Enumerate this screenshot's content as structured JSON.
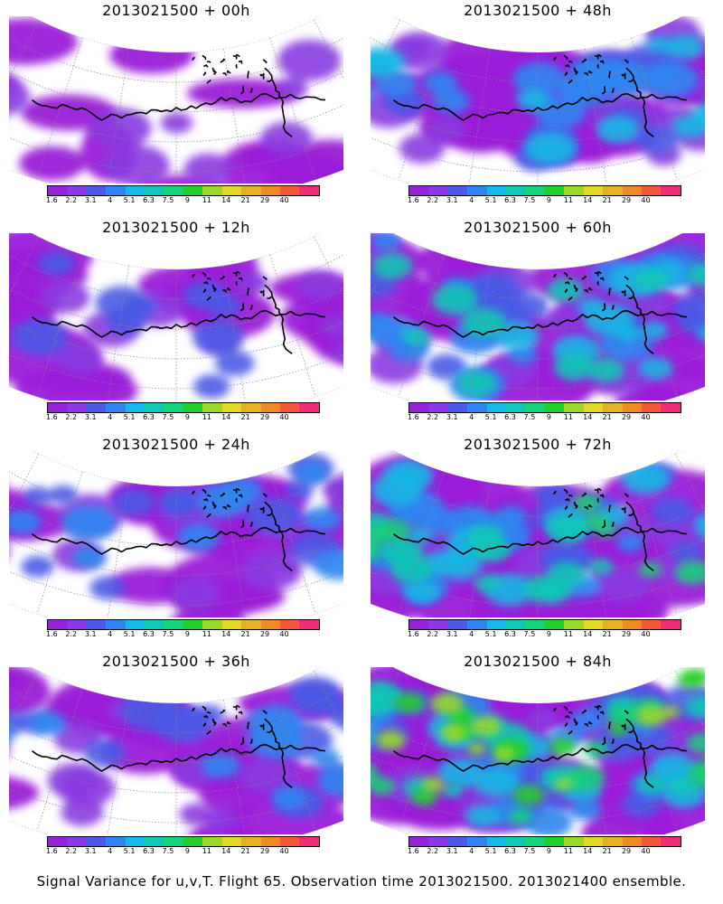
{
  "figure": {
    "caption": "Signal Variance for u,v,T. Flight 65. Observation time 2013021500. 2013021400 ensemble.",
    "colorbar": {
      "labels": [
        "1.6",
        "2.2",
        "3.1",
        "4",
        "5.1",
        "6.3",
        "7.5",
        "9",
        "11",
        "14",
        "21",
        "29",
        "40"
      ],
      "colors": [
        "#9b1fd8",
        "#8a3ae0",
        "#4a5be6",
        "#2f86f0",
        "#18b7e6",
        "#11c8b6",
        "#19d27a",
        "#23cf2a",
        "#9bd82a",
        "#e5d72a",
        "#e3b12a",
        "#ef8a2a",
        "#ee5a3a",
        "#ec2d7a"
      ]
    },
    "panels": [
      {
        "title": "2013021500 + 00h",
        "intensity": 0.15
      },
      {
        "title": "2013021500 + 48h",
        "intensity": 0.45
      },
      {
        "title": "2013021500 + 12h",
        "intensity": 0.25
      },
      {
        "title": "2013021500 + 60h",
        "intensity": 0.55
      },
      {
        "title": "2013021500 + 24h",
        "intensity": 0.32
      },
      {
        "title": "2013021500 + 72h",
        "intensity": 0.68
      },
      {
        "title": "2013021500 + 36h",
        "intensity": 0.38
      },
      {
        "title": "2013021500 + 84h",
        "intensity": 0.8
      }
    ]
  }
}
